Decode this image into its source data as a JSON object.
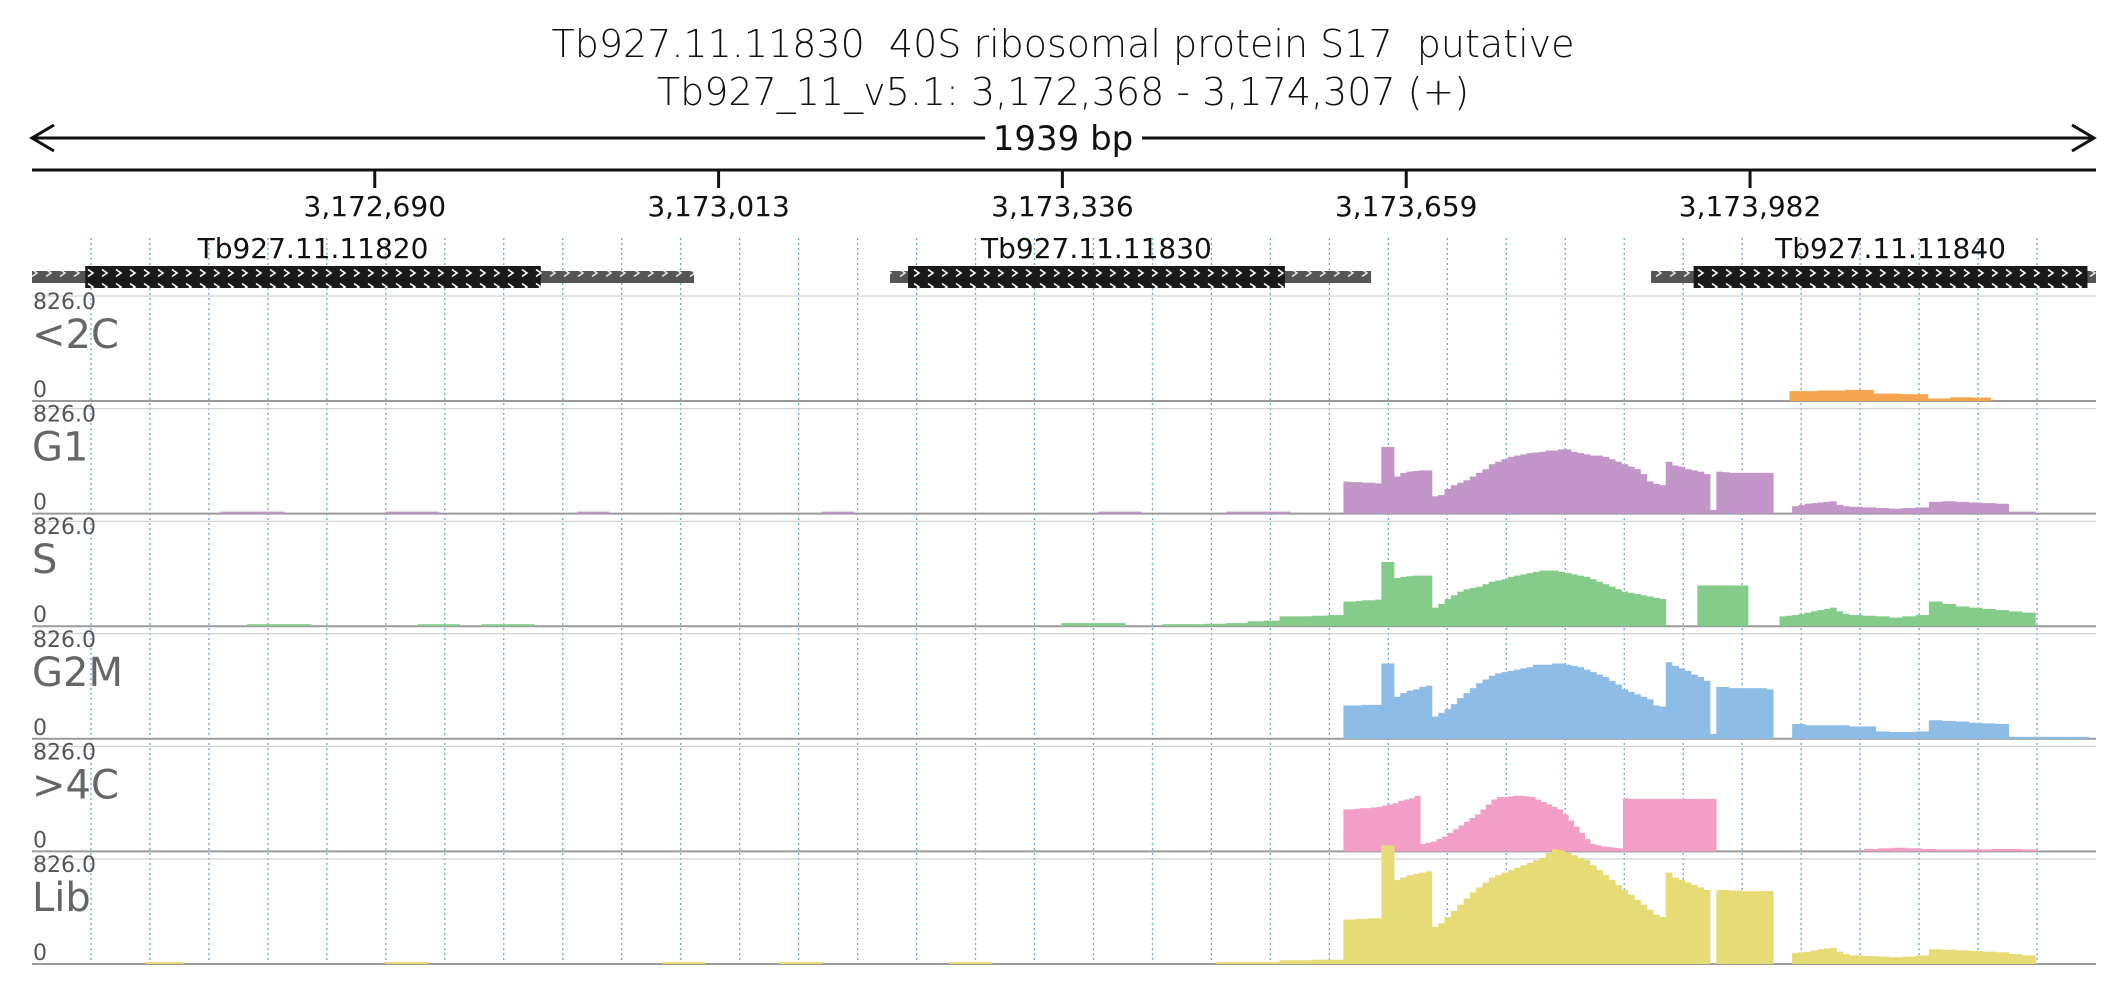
{
  "header": {
    "title": "Tb927.11.11830  40S ribosomal protein S17  putative",
    "location": "Tb927_11_v5.1: 3,172,368 - 3,174,307 (+)",
    "span_label": "1939 bp"
  },
  "chart_data": {
    "type": "area",
    "region": {
      "start": 3172368,
      "end": 3174307,
      "strand": "+"
    },
    "ruler_ticks": [
      {
        "pos": 3172690,
        "label": "3,172,690"
      },
      {
        "pos": 3173013,
        "label": "3,173,013"
      },
      {
        "pos": 3173336,
        "label": "3,173,336"
      },
      {
        "pos": 3173659,
        "label": "3,173,659"
      },
      {
        "pos": 3173982,
        "label": "3,173,982"
      }
    ],
    "genes": [
      {
        "name": "Tb927.11.11820",
        "start": 3172368,
        "end": 3172990,
        "cds_start": 3172418,
        "cds_end": 3172846
      },
      {
        "name": "Tb927.11.11830",
        "start": 3173174,
        "end": 3173626,
        "cds_start": 3173191,
        "cds_end": 3173545
      },
      {
        "name": "Tb927.11.11840",
        "start": 3173889,
        "end": 3174307,
        "cds_start": 3173929,
        "cds_end": 3174299
      }
    ],
    "y_max_label": "826.0",
    "y_min_label": "0",
    "ylim": [
      0,
      826
    ],
    "series": [
      {
        "name": "<2C",
        "color": "#f5a550",
        "segments": [
          {
            "start": 3174019,
            "end": 3174098,
            "values": [
              80,
              85,
              90
            ]
          },
          {
            "start": 3174098,
            "end": 3174149,
            "values": [
              60,
              55
            ]
          },
          {
            "start": 3174149,
            "end": 3174170,
            "values": [
              20
            ]
          },
          {
            "start": 3174170,
            "end": 3174208,
            "values": [
              30,
              28
            ]
          }
        ]
      },
      {
        "name": "G1",
        "color": "#c296c9",
        "segments": [
          {
            "start": 3172545,
            "end": 3172605,
            "values": [
              8
            ]
          },
          {
            "start": 3172700,
            "end": 3172750,
            "values": [
              12
            ]
          },
          {
            "start": 3172880,
            "end": 3172910,
            "values": [
              6
            ]
          },
          {
            "start": 3173110,
            "end": 3173140,
            "values": [
              4
            ]
          },
          {
            "start": 3173370,
            "end": 3173410,
            "values": [
              6
            ]
          },
          {
            "start": 3173490,
            "end": 3173550,
            "values": [
              10
            ]
          },
          {
            "start": 3173600,
            "end": 3174075,
            "values": [
              260,
              255,
              255,
              250,
              250,
              245,
              540,
              540,
              300,
              330,
              340,
              345,
              350,
              350,
              140,
              150,
              200,
              230,
              250,
              270,
              300,
              330,
              360,
              400,
              420,
              440,
              460,
              470,
              480,
              490,
              495,
              500,
              510,
              510,
              520,
              520,
              500,
              490,
              480,
              470,
              470,
              460,
              440,
              420,
              400,
              380,
              360,
              320,
              260,
              240,
              230,
              420,
              390,
              380,
              360,
              350,
              340,
              320,
              30,
              340,
              335,
              330,
              330,
              330,
              330,
              330,
              330,
              330,
              0,
              0,
              0,
              60,
              70,
              80,
              85,
              90,
              95,
              100,
              70,
              60
            ]
          },
          {
            "start": 3174075,
            "end": 3174250,
            "values": [
              55,
              50,
              45,
              40,
              45,
              50,
              95,
              100,
              95,
              90,
              85,
              80,
              10,
              5
            ]
          }
        ]
      },
      {
        "name": "S",
        "color": "#85cc8b",
        "segments": [
          {
            "start": 3172570,
            "end": 3172630,
            "values": [
              10
            ]
          },
          {
            "start": 3172730,
            "end": 3172770,
            "values": [
              5
            ]
          },
          {
            "start": 3172790,
            "end": 3172840,
            "values": [
              10
            ]
          },
          {
            "start": 3173335,
            "end": 3173395,
            "values": [
              25
            ]
          },
          {
            "start": 3173430,
            "end": 3173510,
            "values": [
              10,
              15,
              20,
              25
            ]
          },
          {
            "start": 3173510,
            "end": 3173540,
            "values": [
              40,
              45
            ]
          },
          {
            "start": 3173540,
            "end": 3173600,
            "values": [
              80,
              80,
              85,
              90
            ]
          },
          {
            "start": 3173600,
            "end": 3174075,
            "values": [
              200,
              200,
              205,
              210,
              210,
              215,
              520,
              520,
              390,
              400,
              405,
              410,
              410,
              410,
              150,
              180,
              220,
              250,
              280,
              300,
              310,
              320,
              340,
              360,
              370,
              380,
              400,
              410,
              420,
              430,
              440,
              450,
              450,
              450,
              440,
              430,
              420,
              410,
              400,
              380,
              360,
              340,
              320,
              300,
              280,
              270,
              260,
              250,
              240,
              230,
              220,
              0,
              0,
              0,
              0,
              0,
              330,
              330,
              330,
              330,
              330,
              330,
              330,
              330,
              0,
              0,
              0,
              0,
              0,
              80,
              85,
              90,
              100,
              110,
              120,
              130,
              140,
              150,
              120,
              100
            ]
          },
          {
            "start": 3174075,
            "end": 3174250,
            "values": [
              90,
              85,
              80,
              70,
              80,
              90,
              200,
              180,
              160,
              150,
              140,
              130,
              120,
              110
            ]
          }
        ]
      },
      {
        "name": "G2M",
        "color": "#8dbde6",
        "segments": [
          {
            "start": 3173600,
            "end": 3174075,
            "values": [
              270,
              270,
              270,
              275,
              275,
              275,
              610,
              610,
              340,
              370,
              390,
              400,
              420,
              430,
              180,
              210,
              240,
              280,
              330,
              370,
              410,
              450,
              480,
              510,
              530,
              540,
              550,
              560,
              570,
              580,
              600,
              600,
              600,
              610,
              610,
              600,
              590,
              580,
              560,
              540,
              520,
              500,
              470,
              440,
              400,
              380,
              360,
              340,
              320,
              270,
              260,
              620,
              590,
              570,
              550,
              520,
              500,
              470,
              40,
              420,
              420,
              410,
              410,
              410,
              410,
              410,
              410,
              400,
              0,
              0,
              0,
              120,
              120,
              110,
              110,
              110,
              110,
              110,
              110,
              110
            ]
          },
          {
            "start": 3174075,
            "end": 3174300,
            "values": [
              100,
              100,
              60,
              55,
              55,
              60,
              150,
              145,
              140,
              130,
              125,
              120,
              10,
              5,
              5,
              5,
              5,
              5
            ]
          }
        ]
      },
      {
        "name": ">4C",
        "color": "#f39ec7",
        "segments": [
          {
            "start": 3173600,
            "end": 3174012,
            "values": [
              340,
              340,
              345,
              350,
              350,
              355,
              360,
              370,
              380,
              390,
              410,
              420,
              430,
              450,
              60,
              70,
              80,
              100,
              120,
              150,
              180,
              210,
              240,
              270,
              300,
              340,
              380,
              420,
              440,
              440,
              445,
              450,
              450,
              445,
              440,
              420,
              400,
              380,
              360,
              340,
              300,
              250,
              200,
              150,
              100,
              60,
              50,
              40,
              35,
              30,
              25,
              430,
              425,
              425,
              425,
              425,
              425,
              425,
              425,
              425,
              425,
              425,
              425,
              425,
              425,
              425,
              425,
              425,
              0,
              0,
              0,
              0,
              0,
              0,
              0,
              0,
              0,
              0,
              0,
              0
            ]
          },
          {
            "start": 3174089,
            "end": 3174250,
            "values": [
              20,
              25,
              30,
              25,
              20,
              15,
              10,
              10,
              15,
              20,
              20,
              15
            ]
          }
        ]
      },
      {
        "name": "Lib",
        "color": "#e6db74",
        "segments": [
          {
            "start": 3172475,
            "end": 3172510,
            "values": [
              6
            ]
          },
          {
            "start": 3172700,
            "end": 3172740,
            "values": [
              4
            ]
          },
          {
            "start": 3172960,
            "end": 3173000,
            "values": [
              4
            ]
          },
          {
            "start": 3173070,
            "end": 3173110,
            "values": [
              4
            ]
          },
          {
            "start": 3173230,
            "end": 3173270,
            "values": [
              4
            ]
          },
          {
            "start": 3173480,
            "end": 3173540,
            "values": [
              15
            ]
          },
          {
            "start": 3173540,
            "end": 3173600,
            "values": [
              30,
              30,
              35,
              35
            ]
          },
          {
            "start": 3173600,
            "end": 3174075,
            "values": [
              360,
              360,
              365,
              365,
              370,
              370,
              960,
              960,
              680,
              700,
              720,
              730,
              740,
              750,
              300,
              330,
              380,
              430,
              480,
              530,
              580,
              620,
              660,
              700,
              720,
              740,
              760,
              780,
              800,
              820,
              840,
              860,
              900,
              930,
              920,
              900,
              880,
              860,
              840,
              800,
              760,
              720,
              680,
              640,
              600,
              560,
              520,
              480,
              440,
              400,
              380,
              740,
              700,
              680,
              660,
              640,
              620,
              600,
              0,
              600,
              600,
              595,
              595,
              590,
              590,
              590,
              590,
              590,
              0,
              0,
              0,
              90,
              95,
              100,
              110,
              120,
              125,
              130,
              100,
              80
            ]
          },
          {
            "start": 3174075,
            "end": 3174250,
            "values": [
              70,
              65,
              60,
              55,
              60,
              70,
              120,
              115,
              110,
              105,
              100,
              95,
              80,
              70
            ]
          }
        ]
      }
    ]
  }
}
